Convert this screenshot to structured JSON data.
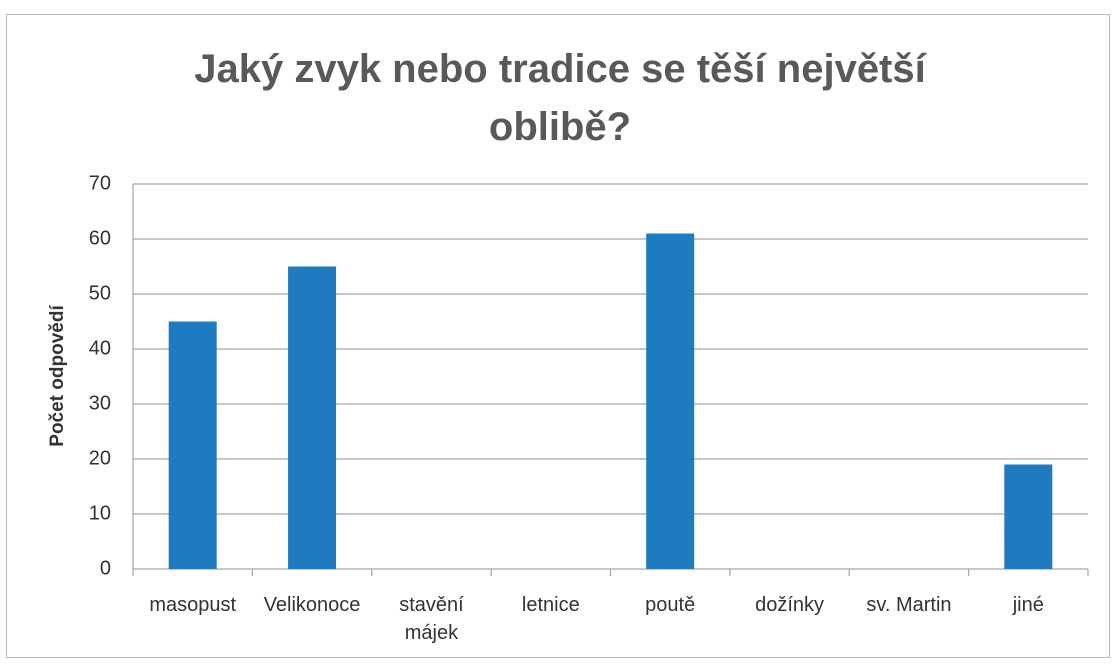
{
  "chart_data": {
    "type": "bar",
    "title": "Jaký zvyk nebo tradice se těší největší oblibě?",
    "y_label": "Počet odpovědí",
    "categories": [
      "masopust",
      "Velikonoce",
      "stavění májek",
      "letnice",
      "poutě",
      "dožínky",
      "sv. Martin",
      "jiné"
    ],
    "values": [
      45,
      55,
      0,
      0,
      61,
      0,
      0,
      19
    ],
    "color": "#1f7bbf",
    "ylim": [
      0,
      70
    ],
    "yticks": [
      0,
      10,
      20,
      30,
      40,
      50,
      60,
      70
    ],
    "grid": true
  }
}
